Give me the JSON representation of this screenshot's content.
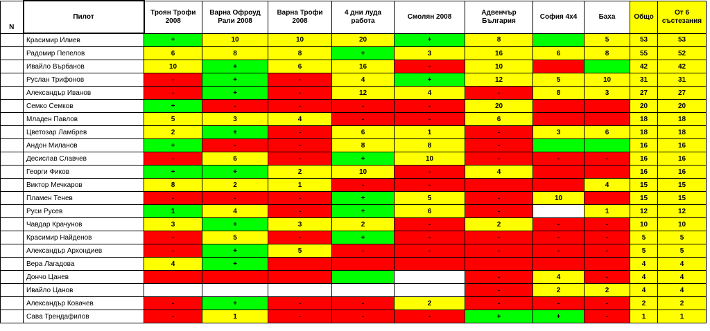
{
  "colors": {
    "green": "#00ff00",
    "yellow": "#ffff00",
    "red": "#ff0000",
    "white": "#ffffff"
  },
  "headers": {
    "n": "N",
    "pilot": "Пилот",
    "events": [
      "Троян Трофи 2008",
      "Варна Офроуд Рали 2008",
      "Варна Трофи 2008",
      "4 дни луда работа",
      "Смолян 2008",
      "Адвенчър България",
      "София 4х4",
      "Баха"
    ],
    "total": "Общо",
    "best6": "От 6 състезания"
  },
  "rows": [
    {
      "pilot": "Красимир Илиев",
      "cells": [
        [
          "+",
          "g"
        ],
        [
          "10",
          "y"
        ],
        [
          "10",
          "y"
        ],
        [
          "20",
          "y"
        ],
        [
          "+",
          "g"
        ],
        [
          "8",
          "y"
        ],
        [
          "",
          "g"
        ],
        [
          "5",
          "y"
        ]
      ],
      "total": "53",
      "best6": "53"
    },
    {
      "pilot": "Радомир Пепелов",
      "cells": [
        [
          "6",
          "y"
        ],
        [
          "8",
          "y"
        ],
        [
          "8",
          "y"
        ],
        [
          "+",
          "g"
        ],
        [
          "3",
          "y"
        ],
        [
          "16",
          "y"
        ],
        [
          "6",
          "y"
        ],
        [
          "8",
          "y"
        ]
      ],
      "total": "55",
      "best6": "52"
    },
    {
      "pilot": "Ивайло Върбанов",
      "cells": [
        [
          "10",
          "y"
        ],
        [
          "+",
          "g"
        ],
        [
          "6",
          "y"
        ],
        [
          "16",
          "y"
        ],
        [
          "-",
          "r"
        ],
        [
          "10",
          "y"
        ],
        [
          "",
          "r"
        ],
        [
          "",
          "g"
        ]
      ],
      "total": "42",
      "best6": "42"
    },
    {
      "pilot": "Руслан Трифонов",
      "cells": [
        [
          "-",
          "r"
        ],
        [
          "+",
          "g"
        ],
        [
          "-",
          "r"
        ],
        [
          "4",
          "y"
        ],
        [
          "+",
          "g"
        ],
        [
          "12",
          "y"
        ],
        [
          "5",
          "y"
        ],
        [
          "10",
          "y"
        ]
      ],
      "total": "31",
      "best6": "31"
    },
    {
      "pilot": "Александър Иванов",
      "cells": [
        [
          "-",
          "r"
        ],
        [
          "+",
          "g"
        ],
        [
          "-",
          "r"
        ],
        [
          "12",
          "y"
        ],
        [
          "4",
          "y"
        ],
        [
          "-",
          "r"
        ],
        [
          "8",
          "y"
        ],
        [
          "3",
          "y"
        ]
      ],
      "total": "27",
      "best6": "27"
    },
    {
      "pilot": "Семко Семков",
      "cells": [
        [
          "+",
          "g"
        ],
        [
          "-",
          "r"
        ],
        [
          "-",
          "r"
        ],
        [
          "-",
          "r"
        ],
        [
          "-",
          "r"
        ],
        [
          "20",
          "y"
        ],
        [
          "",
          "r"
        ],
        [
          "",
          "r"
        ]
      ],
      "total": "20",
      "best6": "20"
    },
    {
      "pilot": "Младен Павлов",
      "cells": [
        [
          "5",
          "y"
        ],
        [
          "3",
          "y"
        ],
        [
          "4",
          "y"
        ],
        [
          "-",
          "r"
        ],
        [
          "-",
          "r"
        ],
        [
          "6",
          "y"
        ],
        [
          "",
          "r"
        ],
        [
          "",
          "r"
        ]
      ],
      "total": "18",
      "best6": "18"
    },
    {
      "pilot": "Цветозар Ламбрев",
      "cells": [
        [
          "2",
          "y"
        ],
        [
          "+",
          "g"
        ],
        [
          "-",
          "r"
        ],
        [
          "6",
          "y"
        ],
        [
          "1",
          "y"
        ],
        [
          "-",
          "r"
        ],
        [
          "3",
          "y"
        ],
        [
          "6",
          "y"
        ]
      ],
      "total": "18",
      "best6": "18"
    },
    {
      "pilot": "Андон Миланов",
      "cells": [
        [
          "+",
          "g"
        ],
        [
          "-",
          "r"
        ],
        [
          "-",
          "r"
        ],
        [
          "8",
          "y"
        ],
        [
          "8",
          "y"
        ],
        [
          "-",
          "r"
        ],
        [
          "",
          "g"
        ],
        [
          "",
          "g"
        ]
      ],
      "total": "16",
      "best6": "16"
    },
    {
      "pilot": "Десислав Славчев",
      "cells": [
        [
          "-",
          "r"
        ],
        [
          "6",
          "y"
        ],
        [
          "-",
          "r"
        ],
        [
          "+",
          "g"
        ],
        [
          "10",
          "y"
        ],
        [
          "-",
          "r"
        ],
        [
          "-",
          "r"
        ],
        [
          "-",
          "r"
        ]
      ],
      "total": "16",
      "best6": "16"
    },
    {
      "pilot": "Георги Фиков",
      "cells": [
        [
          "+",
          "g"
        ],
        [
          "+",
          "g"
        ],
        [
          "2",
          "y"
        ],
        [
          "10",
          "y"
        ],
        [
          "-",
          "r"
        ],
        [
          "4",
          "y"
        ],
        [
          "",
          "r"
        ],
        [
          "",
          "r"
        ]
      ],
      "total": "16",
      "best6": "16"
    },
    {
      "pilot": "Виктор Мечкаров",
      "cells": [
        [
          "8",
          "y"
        ],
        [
          "2",
          "y"
        ],
        [
          "1",
          "y"
        ],
        [
          "-",
          "r"
        ],
        [
          "-",
          "r"
        ],
        [
          "",
          "r"
        ],
        [
          "",
          "r"
        ],
        [
          "4",
          "y"
        ]
      ],
      "total": "15",
      "best6": "15"
    },
    {
      "pilot": "Пламен Тенев",
      "cells": [
        [
          "-",
          "r"
        ],
        [
          "-",
          "r"
        ],
        [
          "-",
          "r"
        ],
        [
          "+",
          "g"
        ],
        [
          "5",
          "y"
        ],
        [
          "-",
          "r"
        ],
        [
          "10",
          "y"
        ],
        [
          "",
          "r"
        ]
      ],
      "total": "15",
      "best6": "15"
    },
    {
      "pilot": "Руси Русев",
      "cells": [
        [
          "1",
          "g"
        ],
        [
          "4",
          "y"
        ],
        [
          "-",
          "r"
        ],
        [
          "+",
          "g"
        ],
        [
          "6",
          "y"
        ],
        [
          "-",
          "r"
        ],
        [
          "",
          "w"
        ],
        [
          "1",
          "y"
        ]
      ],
      "total": "12",
      "best6": "12"
    },
    {
      "pilot": "Чавдар Крачунов",
      "cells": [
        [
          "3",
          "y"
        ],
        [
          "+",
          "g"
        ],
        [
          "3",
          "y"
        ],
        [
          "2",
          "y"
        ],
        [
          "-",
          "r"
        ],
        [
          "2",
          "y"
        ],
        [
          "-",
          "r"
        ],
        [
          "-",
          "r"
        ]
      ],
      "total": "10",
      "best6": "10"
    },
    {
      "pilot": "Красимир Найденов",
      "cells": [
        [
          "-",
          "r"
        ],
        [
          "5",
          "y"
        ],
        [
          "-",
          "r"
        ],
        [
          "+",
          "g"
        ],
        [
          "-",
          "r"
        ],
        [
          "-",
          "r"
        ],
        [
          "-",
          "r"
        ],
        [
          "-",
          "r"
        ]
      ],
      "total": "5",
      "best6": "5"
    },
    {
      "pilot": "Александър Архондиев",
      "cells": [
        [
          "-",
          "r"
        ],
        [
          "+",
          "g"
        ],
        [
          "5",
          "y"
        ],
        [
          "-",
          "r"
        ],
        [
          "-",
          "r"
        ],
        [
          "-",
          "r"
        ],
        [
          "-",
          "r"
        ],
        [
          "-",
          "r"
        ]
      ],
      "total": "5",
      "best6": "5"
    },
    {
      "pilot": "Вера Лагадова",
      "cells": [
        [
          "4",
          "y"
        ],
        [
          "+",
          "g"
        ],
        [
          "",
          "r"
        ],
        [
          "",
          "r"
        ],
        [
          "",
          "r"
        ],
        [
          "",
          "r"
        ],
        [
          "",
          "r"
        ],
        [
          "",
          "r"
        ]
      ],
      "total": "4",
      "best6": "4"
    },
    {
      "pilot": "Дончо Цанев",
      "cells": [
        [
          "",
          "r"
        ],
        [
          "",
          "r"
        ],
        [
          "",
          "r"
        ],
        [
          "",
          "g"
        ],
        [
          "",
          "w"
        ],
        [
          "-",
          "r"
        ],
        [
          "4",
          "y"
        ],
        [
          "-",
          "r"
        ]
      ],
      "total": "4",
      "best6": "4"
    },
    {
      "pilot": "Ивайло Цанов",
      "cells": [
        [
          "",
          "w"
        ],
        [
          "",
          "w"
        ],
        [
          "",
          "w"
        ],
        [
          "",
          "w"
        ],
        [
          "",
          "w"
        ],
        [
          "-",
          "r"
        ],
        [
          "2",
          "y"
        ],
        [
          "2",
          "y"
        ]
      ],
      "total": "4",
      "best6": "4"
    },
    {
      "pilot": "Александър Ковачев",
      "cells": [
        [
          "-",
          "r"
        ],
        [
          "+",
          "g"
        ],
        [
          "-",
          "r"
        ],
        [
          "-",
          "r"
        ],
        [
          "2",
          "y"
        ],
        [
          "-",
          "r"
        ],
        [
          "-",
          "r"
        ],
        [
          "-",
          "r"
        ]
      ],
      "total": "2",
      "best6": "2"
    },
    {
      "pilot": "Сава Трендафилов",
      "cells": [
        [
          "-",
          "r"
        ],
        [
          "1",
          "y"
        ],
        [
          "-",
          "r"
        ],
        [
          "-",
          "r"
        ],
        [
          "-",
          "r"
        ],
        [
          "+",
          "g"
        ],
        [
          "+",
          "g"
        ],
        [
          "-",
          "r"
        ]
      ],
      "total": "1",
      "best6": "1"
    }
  ]
}
